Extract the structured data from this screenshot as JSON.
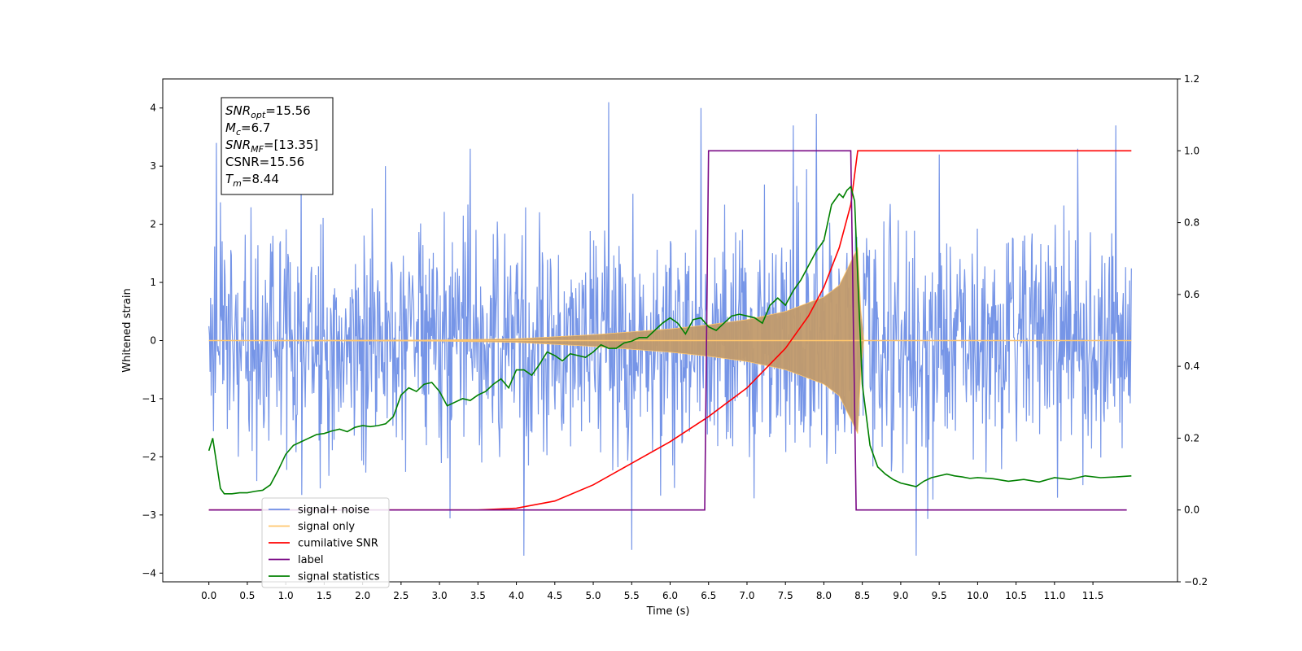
{
  "chart_data": {
    "type": "line",
    "title": "",
    "xlabel": "Time (s)",
    "ylabel": "Whitened strain",
    "xlim": [
      -0.6,
      12.6
    ],
    "ylim": [
      -4.15,
      4.5
    ],
    "y2lim": [
      -0.2,
      1.2
    ],
    "x_ticks": [
      "0.0",
      "0.5",
      "1.0",
      "1.5",
      "2.0",
      "2.5",
      "3.0",
      "3.5",
      "4.0",
      "4.5",
      "5.0",
      "5.5",
      "6.0",
      "6.5",
      "7.0",
      "7.5",
      "8.0",
      "8.5",
      "9.0",
      "9.5",
      "10.0",
      "10.5",
      "11.0",
      "11.5"
    ],
    "y_ticks": [
      "4",
      "3",
      "2",
      "1",
      "0",
      "−1",
      "−2",
      "−3",
      "−4"
    ],
    "y2_ticks": [
      "1.2",
      "1.0",
      "0.8",
      "0.6",
      "0.4",
      "0.2",
      "0.0",
      "−0.2"
    ],
    "grid": false,
    "legend_position": "lower-left",
    "info_box": {
      "lines": [
        {
          "main": "SNR",
          "sub": "opt",
          "value": "=15.56"
        },
        {
          "main": "M",
          "sub": "c",
          "value": "=6.7"
        },
        {
          "main": "SNR",
          "sub": "MF",
          "value": "=[13.35]"
        },
        {
          "main": "CSNR",
          "sub": "",
          "value": "=15.56"
        },
        {
          "main": "T",
          "sub": "m",
          "value": "=8.44"
        }
      ]
    },
    "legend": [
      {
        "label": "signal+ noise",
        "color": "#6f8fe6"
      },
      {
        "label": "signal only",
        "color": "#ffc66d"
      },
      {
        "label": "cumilative SNR",
        "color": "#ff0000"
      },
      {
        "label": "label",
        "color": "#7a0a86"
      },
      {
        "label": "signal statistics",
        "color": "#008000"
      }
    ],
    "series": [
      {
        "name": "signal+ noise",
        "axis": "left",
        "color": "#6f8fe6",
        "x_range": [
          0.0,
          12.0
        ],
        "typical_band": [
          -2.2,
          2.2
        ],
        "peaks": [
          [
            0.1,
            3.4
          ],
          [
            1.2,
            3.1
          ],
          [
            2.3,
            3.0
          ],
          [
            3.4,
            3.3
          ],
          [
            4.1,
            -3.7
          ],
          [
            5.2,
            4.1
          ],
          [
            5.5,
            -3.6
          ],
          [
            6.4,
            4.0
          ],
          [
            7.6,
            3.7
          ],
          [
            7.9,
            3.9
          ],
          [
            9.2,
            -3.7
          ],
          [
            9.5,
            3.2
          ],
          [
            11.3,
            3.3
          ],
          [
            11.8,
            3.7
          ]
        ]
      },
      {
        "name": "signal only",
        "axis": "left",
        "color": "#ffc66d",
        "envelope": {
          "x": [
            0.0,
            3.0,
            4.0,
            5.0,
            6.0,
            6.5,
            7.0,
            7.5,
            8.0,
            8.2,
            8.35,
            8.44,
            8.5,
            12.0
          ],
          "amp": [
            0.0,
            0.01,
            0.03,
            0.1,
            0.2,
            0.27,
            0.36,
            0.5,
            0.75,
            0.95,
            1.35,
            1.6,
            0.0,
            0.0
          ]
        }
      },
      {
        "name": "cumilative SNR",
        "axis": "right",
        "color": "#ff0000",
        "x": [
          0.0,
          3.5,
          4.0,
          4.5,
          5.0,
          5.5,
          6.0,
          6.5,
          7.0,
          7.5,
          7.8,
          8.0,
          8.2,
          8.35,
          8.44,
          12.0
        ],
        "y": [
          0.0,
          0.0,
          0.005,
          0.025,
          0.07,
          0.13,
          0.19,
          0.26,
          0.34,
          0.45,
          0.54,
          0.62,
          0.73,
          0.85,
          1.0,
          1.0
        ]
      },
      {
        "name": "label",
        "axis": "right",
        "color": "#7a0a86",
        "x": [
          0.0,
          6.45,
          6.5,
          8.35,
          8.42,
          11.94
        ],
        "y": [
          0.0,
          0.0,
          1.0,
          1.0,
          0.0,
          0.0
        ]
      },
      {
        "name": "signal statistics",
        "axis": "right",
        "color": "#008000",
        "x": [
          0.0,
          0.05,
          0.1,
          0.15,
          0.2,
          0.3,
          0.4,
          0.5,
          0.6,
          0.7,
          0.8,
          0.9,
          1.0,
          1.1,
          1.2,
          1.3,
          1.4,
          1.5,
          1.6,
          1.7,
          1.8,
          1.9,
          2.0,
          2.1,
          2.2,
          2.3,
          2.4,
          2.5,
          2.6,
          2.7,
          2.8,
          2.9,
          3.0,
          3.1,
          3.2,
          3.3,
          3.4,
          3.5,
          3.6,
          3.7,
          3.8,
          3.9,
          4.0,
          4.1,
          4.2,
          4.3,
          4.4,
          4.5,
          4.6,
          4.7,
          4.8,
          4.9,
          5.0,
          5.1,
          5.2,
          5.3,
          5.4,
          5.5,
          5.6,
          5.7,
          5.8,
          5.9,
          6.0,
          6.1,
          6.2,
          6.3,
          6.4,
          6.5,
          6.6,
          6.7,
          6.8,
          6.9,
          7.0,
          7.1,
          7.2,
          7.3,
          7.4,
          7.5,
          7.6,
          7.7,
          7.8,
          7.9,
          8.0,
          8.1,
          8.2,
          8.25,
          8.3,
          8.35,
          8.4,
          8.45,
          8.5,
          8.6,
          8.7,
          8.8,
          8.9,
          9.0,
          9.1,
          9.2,
          9.3,
          9.4,
          9.5,
          9.6,
          9.7,
          9.8,
          9.9,
          10.0,
          10.2,
          10.4,
          10.6,
          10.8,
          11.0,
          11.2,
          11.4,
          11.6,
          11.8,
          12.0
        ],
        "y": [
          0.165,
          0.2,
          0.13,
          0.06,
          0.045,
          0.045,
          0.048,
          0.048,
          0.052,
          0.055,
          0.07,
          0.11,
          0.155,
          0.18,
          0.19,
          0.2,
          0.21,
          0.213,
          0.22,
          0.225,
          0.218,
          0.23,
          0.235,
          0.232,
          0.235,
          0.24,
          0.26,
          0.32,
          0.34,
          0.33,
          0.35,
          0.355,
          0.33,
          0.29,
          0.3,
          0.31,
          0.305,
          0.32,
          0.33,
          0.35,
          0.365,
          0.34,
          0.39,
          0.39,
          0.375,
          0.405,
          0.44,
          0.43,
          0.415,
          0.435,
          0.43,
          0.425,
          0.44,
          0.46,
          0.45,
          0.45,
          0.465,
          0.47,
          0.48,
          0.48,
          0.5,
          0.52,
          0.535,
          0.52,
          0.49,
          0.53,
          0.535,
          0.51,
          0.5,
          0.52,
          0.54,
          0.545,
          0.54,
          0.535,
          0.52,
          0.57,
          0.59,
          0.57,
          0.61,
          0.64,
          0.68,
          0.72,
          0.75,
          0.85,
          0.88,
          0.87,
          0.89,
          0.9,
          0.86,
          0.6,
          0.35,
          0.18,
          0.12,
          0.1,
          0.085,
          0.075,
          0.07,
          0.065,
          0.08,
          0.09,
          0.095,
          0.1,
          0.095,
          0.092,
          0.088,
          0.09,
          0.087,
          0.08,
          0.085,
          0.078,
          0.09,
          0.085,
          0.095,
          0.09,
          0.092,
          0.095
        ]
      }
    ]
  }
}
